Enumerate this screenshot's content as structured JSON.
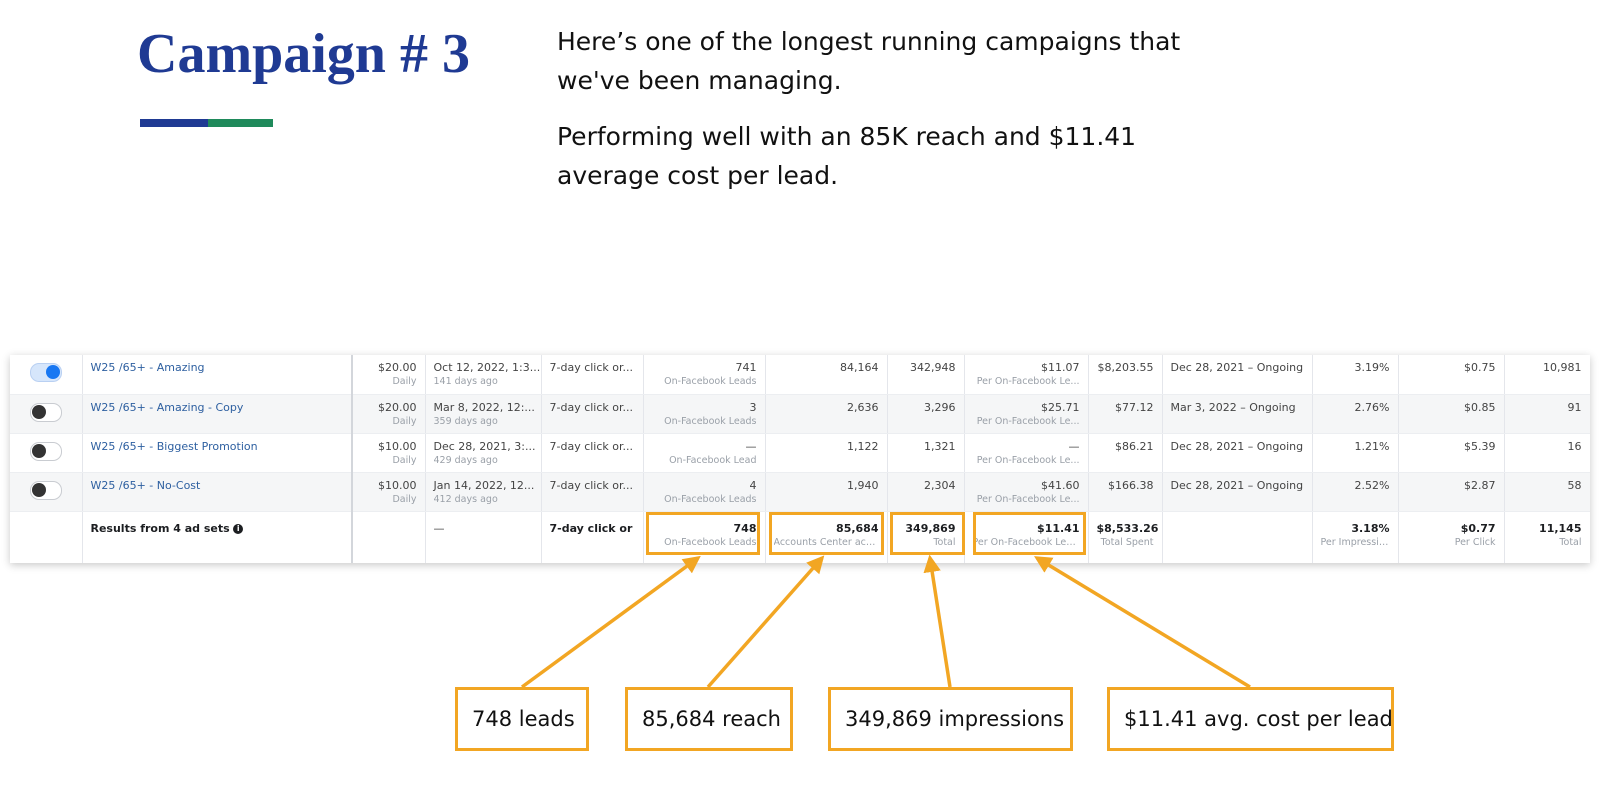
{
  "slide": {
    "title": "Campaign # 3",
    "paragraph1": "Here’s one of the longest running campaigns that we've been managing.",
    "paragraph2": "Performing well with an 85K reach and $11.41 average cost per lead.",
    "accent_colors": {
      "title": "#1f3a93",
      "bar_blue": "#1f3a93",
      "bar_green": "#1f8a5b",
      "highlight": "#f2a623"
    }
  },
  "table": {
    "rows": [
      {
        "toggle_on": true,
        "name": "W25 /65+ - Amazing",
        "budget": "$20.00",
        "budget_type": "Daily",
        "last_edit": "Oct 12, 2022, 1:3...",
        "last_edit_sub": "141 days ago",
        "attribution": "7-day click or...",
        "results": "741",
        "results_sub": "On-Facebook Leads",
        "reach": "84,164",
        "impressions": "342,948",
        "cost_per_result": "$11.07",
        "cost_sub": "Per On-Facebook Le...",
        "amount_spent": "$8,203.55",
        "schedule": "Dec 28, 2021 – Ongoing",
        "ctr": "3.19%",
        "cpc": "$0.75",
        "clicks": "10,981"
      },
      {
        "toggle_on": false,
        "name": "W25 /65+ - Amazing - Copy",
        "budget": "$20.00",
        "budget_type": "Daily",
        "last_edit": "Mar 8, 2022, 12:...",
        "last_edit_sub": "359 days ago",
        "attribution": "7-day click or...",
        "results": "3",
        "results_sub": "On-Facebook Leads",
        "reach": "2,636",
        "impressions": "3,296",
        "cost_per_result": "$25.71",
        "cost_sub": "Per On-Facebook Le...",
        "amount_spent": "$77.12",
        "schedule": "Mar 3, 2022 – Ongoing",
        "ctr": "2.76%",
        "cpc": "$0.85",
        "clicks": "91"
      },
      {
        "toggle_on": false,
        "name": "W25 /65+ - Biggest Promotion",
        "budget": "$10.00",
        "budget_type": "Daily",
        "last_edit": "Dec 28, 2021, 3:...",
        "last_edit_sub": "429 days ago",
        "attribution": "7-day click or...",
        "results": "—",
        "results_sub": "On-Facebook Lead",
        "reach": "1,122",
        "impressions": "1,321",
        "cost_per_result": "—",
        "cost_sub": "Per On-Facebook Le...",
        "amount_spent": "$86.21",
        "schedule": "Dec 28, 2021 – Ongoing",
        "ctr": "1.21%",
        "cpc": "$5.39",
        "clicks": "16"
      },
      {
        "toggle_on": false,
        "name": "W25 /65+ - No-Cost",
        "budget": "$10.00",
        "budget_type": "Daily",
        "last_edit": "Jan 14, 2022, 12...",
        "last_edit_sub": "412 days ago",
        "attribution": "7-day click or...",
        "results": "4",
        "results_sub": "On-Facebook Leads",
        "reach": "1,940",
        "impressions": "2,304",
        "cost_per_result": "$41.60",
        "cost_sub": "Per On-Facebook Le...",
        "amount_spent": "$166.38",
        "schedule": "Dec 28, 2021 – Ongoing",
        "ctr": "2.52%",
        "cpc": "$2.87",
        "clicks": "58"
      }
    ],
    "total": {
      "label": "Results from 4 ad sets",
      "info_glyph": "i",
      "last_edit": "—",
      "attribution": "7-day click or",
      "results": "748",
      "results_sub": "On-Facebook Leads",
      "reach": "85,684",
      "reach_sub": "Accounts Center acco...",
      "impressions": "349,869",
      "impressions_sub": "Total",
      "cost_per_result": "$11.41",
      "cost_sub": "Per On-Facebook Leads",
      "amount_spent": "$8,533.26",
      "amount_sub": "Total Spent",
      "ctr": "3.18%",
      "ctr_sub": "Per Impressions",
      "cpc": "$0.77",
      "cpc_sub": "Per Click",
      "clicks": "11,145",
      "clicks_sub": "Total"
    }
  },
  "callouts": {
    "leads": "748 leads",
    "reach": "85,684 reach",
    "impressions": "349,869 impressions",
    "cost": "$11.41 avg. cost per lead"
  }
}
